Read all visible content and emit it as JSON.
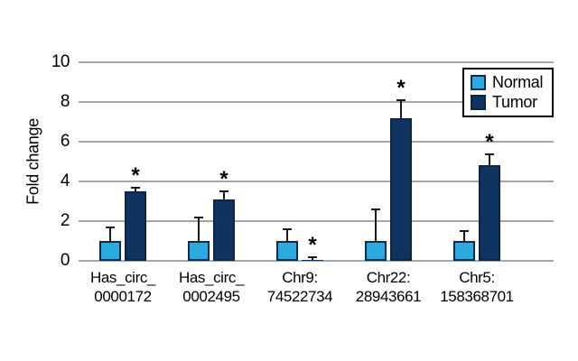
{
  "figure": {
    "significance_marker": "*"
  },
  "chart_data": {
    "type": "bar",
    "title": "",
    "xlabel": "",
    "ylabel": "Fold change",
    "ylim": [
      0,
      10
    ],
    "yticks": [
      0,
      2,
      4,
      6,
      8,
      10
    ],
    "grid": true,
    "legend_position": "top-right",
    "categories": [
      [
        "Has_circ_",
        "0000172"
      ],
      [
        "Has_circ_",
        "0002495"
      ],
      [
        "Chr9:",
        "74522734"
      ],
      [
        "Chr22:",
        "28943661"
      ],
      [
        "Chr5:",
        "158368701"
      ]
    ],
    "series": [
      {
        "name": "Normal",
        "color": "#29abe2",
        "border_color": "#092c4f",
        "values": [
          1.0,
          1.0,
          1.0,
          1.0,
          1.0
        ],
        "errors_up": [
          0.7,
          1.2,
          0.6,
          1.6,
          0.5
        ],
        "significant": [
          false,
          false,
          false,
          false,
          false
        ]
      },
      {
        "name": "Tumor",
        "color": "#0e3560",
        "border_color": "#0a2644",
        "values": [
          3.5,
          3.1,
          0.05,
          7.2,
          4.8
        ],
        "errors_up": [
          0.2,
          0.4,
          0.15,
          0.9,
          0.55
        ],
        "significant": [
          true,
          true,
          true,
          true,
          true
        ]
      }
    ],
    "colors": {
      "gridline": "#a5a5a5",
      "error_bar": "#1a1a1a",
      "text": "#000000"
    }
  }
}
